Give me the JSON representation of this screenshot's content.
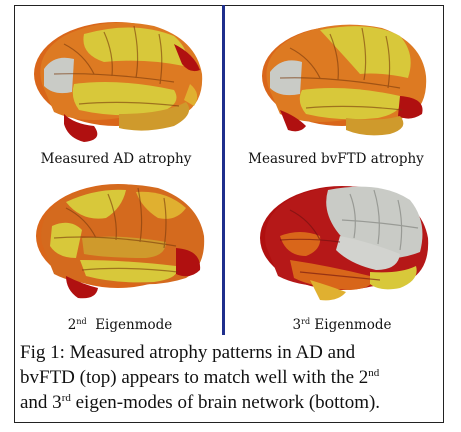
{
  "panels": [
    {
      "id": "ad",
      "label": "Measured AD atrophy"
    },
    {
      "id": "bvftd",
      "label": "Measured bvFTD atrophy"
    },
    {
      "id": "eig2",
      "label_num": "2",
      "label_sup": "nd",
      "label_text": "Eigenmode"
    },
    {
      "id": "eig3",
      "label_num": "3",
      "label_sup": "rd",
      "label_text": "Eigenmode"
    }
  ],
  "caption": {
    "line1": "Fig 1: Measured atrophy patterns in AD and",
    "line2_a": "bvFTD (top) appears to match well with the 2",
    "line2_sup": "nd",
    "line3_a": "and 3",
    "line3_sup": "rd",
    "line3_b": " eigen-modes of brain network (bottom)."
  },
  "colors": {
    "divider": "#1f2f8c",
    "red": "#b01010",
    "orange": "#d9661a",
    "yellow": "#d8c83a",
    "gray": "#c9cbc6"
  }
}
